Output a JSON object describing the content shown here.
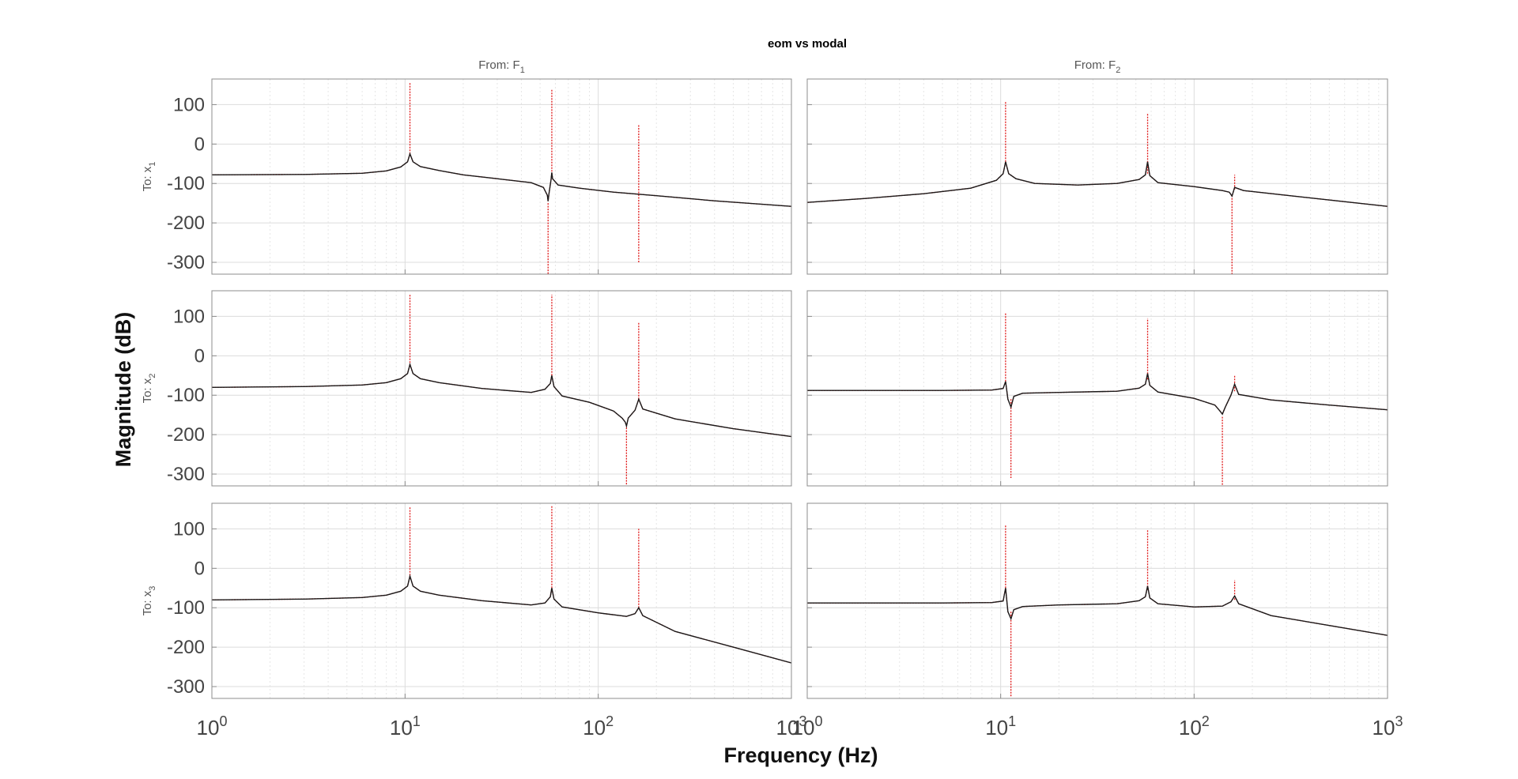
{
  "chart_data": {
    "type": "line",
    "title": "eom vs modal",
    "xlabel": "Frequency  (Hz)",
    "ylabel": "Magnitude (dB)",
    "xscale": "log",
    "xlim": [
      1,
      1000
    ],
    "ylim": [
      -330,
      165
    ],
    "yticks": [
      100,
      0,
      -100,
      -200,
      -300
    ],
    "xticks": [
      1,
      10,
      100,
      1000
    ],
    "xtick_labels": [
      {
        "base": "10",
        "exp": "0"
      },
      {
        "base": "10",
        "exp": "1"
      },
      {
        "base": "10",
        "exp": "2"
      },
      {
        "base": "10",
        "exp": "3"
      }
    ],
    "grid": true,
    "column_headers": [
      {
        "prefix": "From: F",
        "sub": "1"
      },
      {
        "prefix": "From: F",
        "sub": "2"
      }
    ],
    "row_headers": [
      {
        "prefix": "To: x",
        "sub": "1"
      },
      {
        "prefix": "To: x",
        "sub": "2"
      },
      {
        "prefix": "To: x",
        "sub": "3"
      }
    ],
    "colors": {
      "black_line": "#1a1a1a",
      "red_line": "#e01a1a",
      "grid": "#dcdcdc",
      "axes": "#8c8c8c"
    },
    "panels": [
      {
        "row": 0,
        "col": 0,
        "peaks": [
          10.6,
          57.5
        ],
        "antipeaks": [
          55
        ],
        "red_spikes": [
          {
            "x": 10.6,
            "y1": -25,
            "y2": 155
          },
          {
            "x": 57.5,
            "y1": -70,
            "y2": 140
          },
          {
            "x": 55,
            "y1": -150,
            "y2": -335
          },
          {
            "x": 162,
            "y1": -300,
            "y2": 50
          }
        ],
        "series": {
          "x": [
            1,
            3,
            6,
            8,
            9.5,
            10.3,
            10.6,
            11,
            12,
            15,
            20,
            30,
            45,
            52,
            54.5,
            55,
            55.5,
            57,
            57.5,
            58,
            62,
            80,
            120,
            200,
            400,
            1000
          ],
          "y": [
            -78,
            -77,
            -74,
            -68,
            -58,
            -45,
            -25,
            -45,
            -57,
            -67,
            -78,
            -88,
            -98,
            -110,
            -130,
            -145,
            -128,
            -90,
            -72,
            -88,
            -104,
            -112,
            -122,
            -131,
            -144,
            -158
          ]
        }
      },
      {
        "row": 0,
        "col": 1,
        "peaks": [
          10.6,
          57.5,
          160
        ],
        "antipeaks": [
          157
        ],
        "red_spikes": [
          {
            "x": 10.6,
            "y1": -45,
            "y2": 108
          },
          {
            "x": 57.5,
            "y1": -75,
            "y2": 78
          },
          {
            "x": 157,
            "y1": -130,
            "y2": -335
          },
          {
            "x": 162,
            "y1": -115,
            "y2": -78
          }
        ],
        "series": {
          "x": [
            1,
            2,
            4,
            7,
            9.5,
            10.3,
            10.6,
            11,
            12,
            15,
            25,
            40,
            52,
            56,
            57.5,
            59,
            65,
            100,
            140,
            152,
            157,
            162,
            180,
            300,
            1000
          ],
          "y": [
            -148,
            -138,
            -126,
            -112,
            -92,
            -75,
            -45,
            -75,
            -88,
            -100,
            -104,
            -100,
            -90,
            -78,
            -45,
            -80,
            -98,
            -108,
            -118,
            -122,
            -132,
            -110,
            -118,
            -130,
            -158
          ]
        }
      },
      {
        "row": 1,
        "col": 0,
        "peaks": [
          10.6,
          57.5,
          162
        ],
        "antipeaks": [
          140
        ],
        "red_spikes": [
          {
            "x": 10.6,
            "y1": -25,
            "y2": 155
          },
          {
            "x": 57.5,
            "y1": -50,
            "y2": 155
          },
          {
            "x": 140,
            "y1": -175,
            "y2": -335
          },
          {
            "x": 162,
            "y1": -110,
            "y2": 85
          }
        ],
        "series": {
          "x": [
            1,
            3,
            6,
            8,
            9.5,
            10.3,
            10.6,
            11,
            12,
            15,
            25,
            45,
            53,
            56.5,
            57.5,
            59,
            65,
            90,
            120,
            133,
            138,
            140,
            143,
            155,
            162,
            170,
            250,
            500,
            1000
          ],
          "y": [
            -80,
            -78,
            -74,
            -68,
            -58,
            -45,
            -22,
            -45,
            -58,
            -68,
            -83,
            -93,
            -85,
            -70,
            -50,
            -78,
            -102,
            -118,
            -140,
            -158,
            -168,
            -178,
            -158,
            -138,
            -110,
            -135,
            -160,
            -185,
            -205
          ]
        }
      },
      {
        "row": 1,
        "col": 1,
        "peaks": [
          10.6,
          57.5,
          162
        ],
        "antipeaks": [
          11.3,
          140
        ],
        "red_spikes": [
          {
            "x": 10.6,
            "y1": -65,
            "y2": 108
          },
          {
            "x": 11.3,
            "y1": -110,
            "y2": -310
          },
          {
            "x": 57.5,
            "y1": -60,
            "y2": 95
          },
          {
            "x": 140,
            "y1": -155,
            "y2": -333
          },
          {
            "x": 162,
            "y1": -90,
            "y2": -48
          }
        ],
        "series": {
          "x": [
            1,
            5,
            9,
            10.3,
            10.6,
            10.9,
            11.3,
            11.7,
            13,
            20,
            40,
            52,
            56,
            57.5,
            59,
            65,
            100,
            128,
            136,
            140,
            145,
            155,
            162,
            170,
            250,
            500,
            1000
          ],
          "y": [
            -88,
            -88,
            -87,
            -83,
            -65,
            -110,
            -130,
            -103,
            -95,
            -93,
            -90,
            -82,
            -72,
            -45,
            -75,
            -92,
            -108,
            -125,
            -140,
            -148,
            -130,
            -100,
            -72,
            -98,
            -112,
            -125,
            -137
          ]
        }
      },
      {
        "row": 2,
        "col": 0,
        "peaks": [
          10.6,
          57.5,
          162
        ],
        "antipeaks": [],
        "red_spikes": [
          {
            "x": 10.6,
            "y1": -25,
            "y2": 155
          },
          {
            "x": 57.5,
            "y1": -50,
            "y2": 160
          },
          {
            "x": 162,
            "y1": -100,
            "y2": 100
          }
        ],
        "series": {
          "x": [
            1,
            3,
            6,
            8,
            9.5,
            10.3,
            10.6,
            11,
            12,
            15,
            25,
            45,
            53,
            56.5,
            57.5,
            59,
            65,
            100,
            140,
            155,
            162,
            170,
            250,
            500,
            1000
          ],
          "y": [
            -80,
            -78,
            -74,
            -68,
            -58,
            -45,
            -20,
            -45,
            -58,
            -68,
            -82,
            -93,
            -88,
            -72,
            -50,
            -78,
            -98,
            -113,
            -122,
            -115,
            -100,
            -120,
            -160,
            -200,
            -240
          ]
        }
      },
      {
        "row": 2,
        "col": 1,
        "peaks": [
          10.6,
          57.5,
          162
        ],
        "antipeaks": [
          11.3
        ],
        "red_spikes": [
          {
            "x": 10.6,
            "y1": -50,
            "y2": 110
          },
          {
            "x": 11.3,
            "y1": -110,
            "y2": -325
          },
          {
            "x": 57.5,
            "y1": -55,
            "y2": 97
          },
          {
            "x": 162,
            "y1": -80,
            "y2": -30
          }
        ],
        "series": {
          "x": [
            1,
            5,
            9,
            10.3,
            10.6,
            10.9,
            11.3,
            11.7,
            13,
            20,
            40,
            52,
            56,
            57.5,
            59,
            65,
            100,
            140,
            155,
            162,
            170,
            250,
            500,
            1000
          ],
          "y": [
            -88,
            -88,
            -87,
            -83,
            -50,
            -110,
            -128,
            -105,
            -97,
            -93,
            -90,
            -82,
            -72,
            -45,
            -75,
            -90,
            -98,
            -96,
            -85,
            -70,
            -90,
            -120,
            -145,
            -170
          ]
        }
      }
    ]
  }
}
